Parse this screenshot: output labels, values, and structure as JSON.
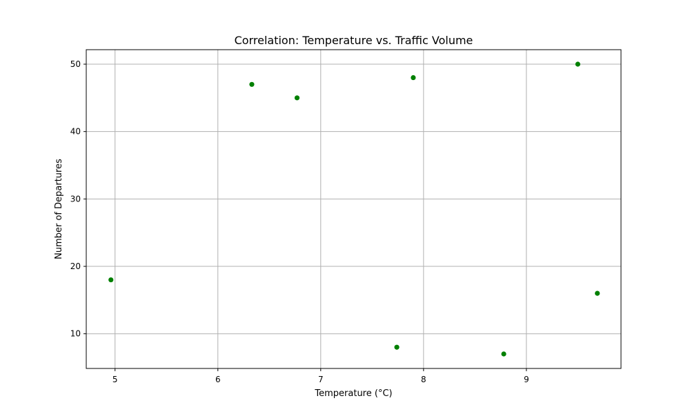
{
  "chart_data": {
    "type": "scatter",
    "title": "Correlation: Temperature vs. Traffic Volume",
    "xlabel": "Temperature (°C)",
    "ylabel": "Number of Departures",
    "xlim": [
      4.72,
      9.92
    ],
    "ylim": [
      4.85,
      52.15
    ],
    "xticks": [
      5,
      6,
      7,
      8,
      9
    ],
    "yticks": [
      10,
      20,
      30,
      40,
      50
    ],
    "grid": true,
    "marker_color": "#008000",
    "points": [
      {
        "x": 4.96,
        "y": 18
      },
      {
        "x": 6.33,
        "y": 47
      },
      {
        "x": 6.77,
        "y": 45
      },
      {
        "x": 7.74,
        "y": 8
      },
      {
        "x": 7.9,
        "y": 48
      },
      {
        "x": 8.78,
        "y": 7
      },
      {
        "x": 9.5,
        "y": 50
      },
      {
        "x": 9.69,
        "y": 16
      }
    ]
  }
}
